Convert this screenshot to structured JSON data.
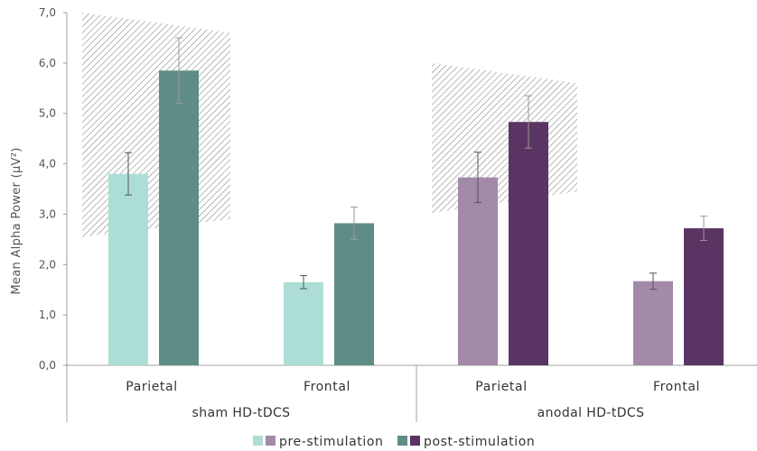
{
  "chart_data": {
    "type": "bar",
    "ylabel": "Mean Alpha Power (µV²)",
    "ylim": [
      0,
      7
    ],
    "yticks": [
      "0,0",
      "1,0",
      "2,0",
      "3,0",
      "4,0",
      "5,0",
      "6,0",
      "7,0"
    ],
    "groups": [
      {
        "name": "sham HD-tDCS",
        "categories": [
          {
            "name": "Parietal",
            "pre": 3.8,
            "pre_err": 0.42,
            "post": 5.85,
            "post_err": 0.65
          },
          {
            "name": "Frontal",
            "pre": 1.65,
            "pre_err": 0.13,
            "post": 2.82,
            "post_err": 0.32
          }
        ]
      },
      {
        "name": "anodal HD-tDCS",
        "categories": [
          {
            "name": "Parietal",
            "pre": 3.73,
            "pre_err": 0.5,
            "post": 4.83,
            "post_err": 0.52
          },
          {
            "name": "Frontal",
            "pre": 1.67,
            "pre_err": 0.16,
            "post": 2.72,
            "post_err": 0.24
          }
        ]
      }
    ],
    "hatched_regions": [
      {
        "group": "sham HD-tDCS",
        "lower": [
          2.55,
          2.9
        ],
        "upper": [
          7.0,
          6.6
        ]
      },
      {
        "group": "anodal HD-tDCS",
        "lower": [
          3.02,
          3.45
        ],
        "upper": [
          6.0,
          5.6
        ]
      }
    ],
    "colors": {
      "sham_pre": "#acded6",
      "sham_post": "#5f8d85",
      "anodal_pre": "#a28aa8",
      "anodal_post": "#5a3463",
      "hatch": "#8a8a8a",
      "axis": "#a0a0a0"
    },
    "legend": {
      "position": "bottom",
      "items": [
        {
          "label": "pre-stimulation",
          "colors": [
            "#acded6",
            "#a28aa8"
          ]
        },
        {
          "label": "post-stimulation",
          "colors": [
            "#5f8d85",
            "#5a3463"
          ]
        }
      ]
    }
  }
}
